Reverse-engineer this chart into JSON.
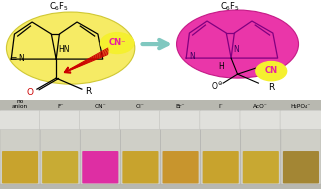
{
  "figsize": [
    3.21,
    1.89
  ],
  "dpi": 100,
  "left_ellipse_color": "#f5e84a",
  "left_ellipse_edge": "#c8c020",
  "right_ellipse_color": "#e820a0",
  "right_ellipse_edge": "#c01080",
  "cn_circle_color": "#f5f030",
  "cn_text_color": "#e820a0",
  "arrow_fill": "#90d8d0",
  "arrow_edge": "#80c8c0",
  "red_color": "#cc0000",
  "vial_labels": [
    "no\nanion",
    "F⁻",
    "CN⁻",
    "Cl⁻",
    "Br⁻",
    "I⁻",
    "AcO⁻",
    "H₂PO₄⁻"
  ],
  "vial_solution_colors": [
    "#c8a020",
    "#c8a828",
    "#e020a0",
    "#c8a020",
    "#c89020",
    "#c8a020",
    "#c8a525",
    "#a08028"
  ],
  "photo_bg": "#b8b8b0",
  "vial_glass_color": "#d8d8d0",
  "vial_cap_color": "#e0e0dc",
  "vial_cap_edge": "#c0c0bc"
}
